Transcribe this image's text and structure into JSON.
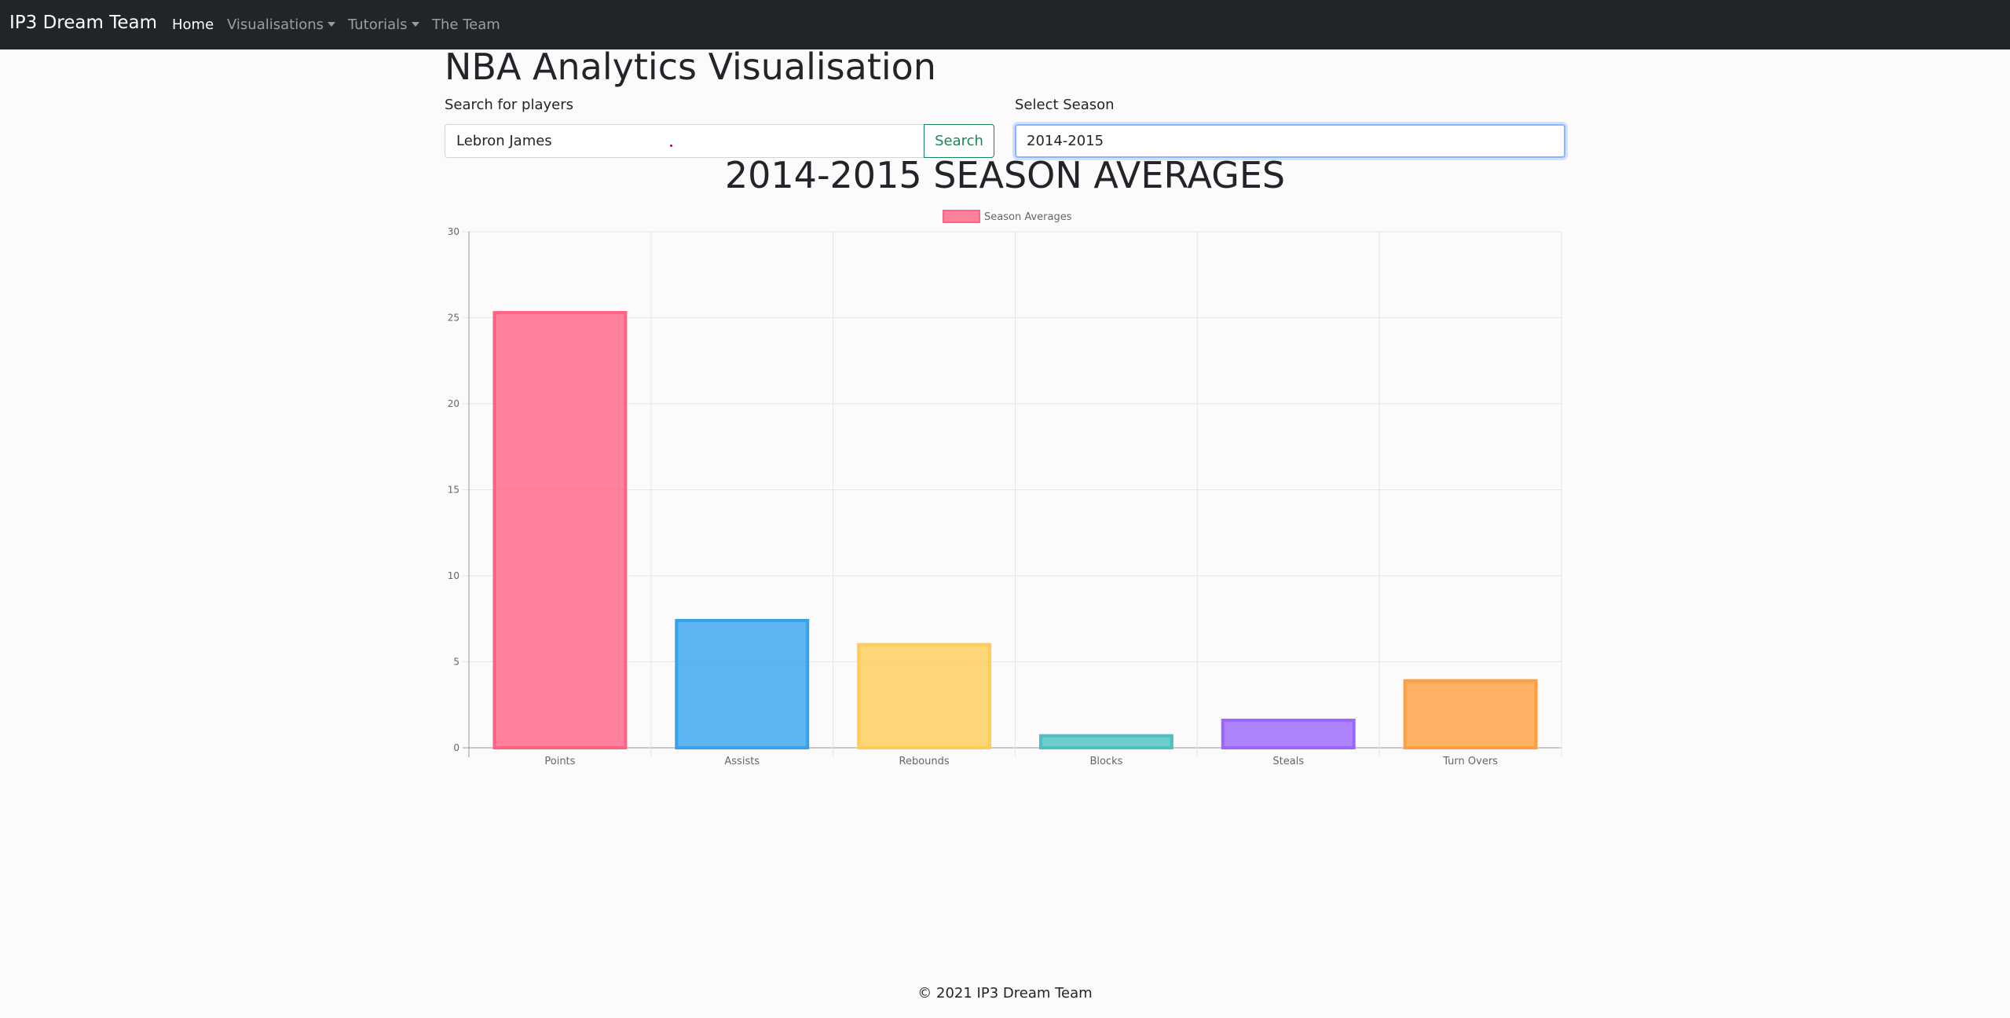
{
  "navbar": {
    "brand": "IP3 Dream Team",
    "items": [
      {
        "label": "Home",
        "active": true,
        "dropdown": false
      },
      {
        "label": "Visualisations",
        "active": false,
        "dropdown": true
      },
      {
        "label": "Tutorials",
        "active": false,
        "dropdown": true
      },
      {
        "label": "The Team",
        "active": false,
        "dropdown": false
      }
    ]
  },
  "page": {
    "title": "NBA Analytics Visualisation"
  },
  "search": {
    "label": "Search for players",
    "value": "Lebron James",
    "button_label": "Search"
  },
  "season": {
    "label": "Select Season",
    "value": "2014-2015"
  },
  "chart_heading": "2014-2015 SEASON AVERAGES",
  "chart_data": {
    "type": "bar",
    "categories": [
      "Points",
      "Assists",
      "Rebounds",
      "Blocks",
      "Steals",
      "Turn Overs"
    ],
    "series": [
      {
        "name": "Season Averages",
        "values": [
          25.3,
          7.4,
          6.0,
          0.7,
          1.6,
          3.9
        ]
      }
    ],
    "ylim": [
      0,
      30
    ],
    "yticks": [
      0,
      5,
      10,
      15,
      20,
      25,
      30
    ],
    "grid": true,
    "legend": "top-center",
    "colors": {
      "fills": [
        "#ff6384",
        "#36a2eb",
        "#ffcd56",
        "#4bc0c0",
        "#9966ff",
        "#ff9f40"
      ],
      "legend_swatch": "#ff6384"
    }
  },
  "footer": {
    "text": "© 2021 IP3 Dream Team"
  }
}
